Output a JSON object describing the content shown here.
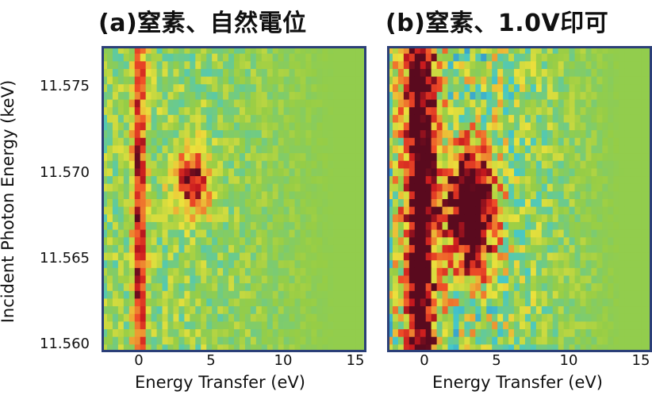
{
  "chart_data": [
    {
      "type": "heatmap",
      "title": "(a)窒素、自然電位",
      "xlabel": "Energy Transfer (eV)",
      "ylabel": "Incident Photon Energy (keV)",
      "xlim": [
        -2.5,
        15
      ],
      "ylim": [
        11.5595,
        11.5775
      ],
      "xticks": [
        "0",
        "5",
        "10",
        "15"
      ],
      "yticks": [
        "11.575",
        "11.570",
        "11.565",
        "11.560"
      ],
      "features": [
        {
          "x": 0,
          "y": 11.568,
          "width_ev": 0.45,
          "height_kev": 0.02,
          "intensity": 0.8
        },
        {
          "x": 3.5,
          "y": 11.5695,
          "width_ev": 1.2,
          "height_kev": 0.0018,
          "intensity": 0.9
        }
      ]
    },
    {
      "type": "heatmap",
      "title": "(b)窒素、1.0V印可",
      "xlabel": "Energy Transfer (eV)",
      "ylabel": "",
      "xlim": [
        -2.5,
        15
      ],
      "ylim": [
        11.5595,
        11.5775
      ],
      "xticks": [
        "0",
        "5",
        "10",
        "15"
      ],
      "yticks": [],
      "features": [
        {
          "x": -0.3,
          "y": 11.568,
          "width_ev": 1.0,
          "height_kev": 0.02,
          "intensity": 1.4
        },
        {
          "x": 3.0,
          "y": 11.568,
          "width_ev": 1.6,
          "height_kev": 0.0035,
          "intensity": 1.5
        }
      ]
    }
  ]
}
